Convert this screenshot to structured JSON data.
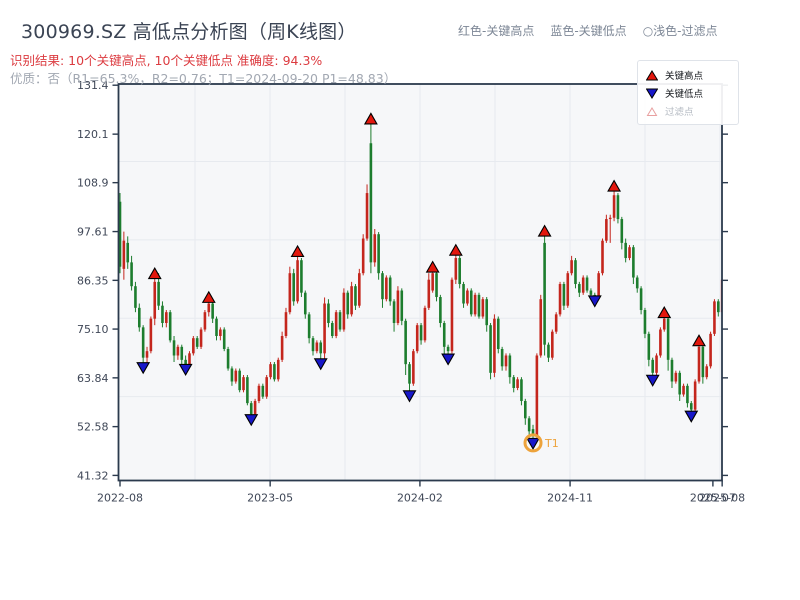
{
  "header": {
    "title": "300969.SZ 高低点分析图（周K线图）",
    "recognition_result": "识别结果: 10个关键高点, 10个关键低点  准确度: 94.3%",
    "quality_line": "优质：否（R1=65.3%，R2=0.76；T1=2024-09-20 P1=48.83）",
    "legend_top": {
      "high": "红色-关键高点",
      "low": "蓝色-关键低点",
      "filtered": "○浅色-过滤点"
    }
  },
  "legend_box": {
    "high": "关键高点",
    "low": "关键低点",
    "filtered": "过滤点"
  },
  "chart_data": {
    "type": "candlestick",
    "symbol": "300969.SZ",
    "timeframe": "weekly",
    "ylim": [
      41.32,
      131.4
    ],
    "y_ticks": [
      {
        "label": "131.4",
        "value": 131.4
      },
      {
        "label": "120.1",
        "value": 120.1
      },
      {
        "label": "108.9",
        "value": 108.9
      },
      {
        "label": "97.61",
        "value": 97.61
      },
      {
        "label": "86.35",
        "value": 86.35
      },
      {
        "label": "75.10",
        "value": 75.1
      },
      {
        "label": "63.84",
        "value": 63.84
      },
      {
        "label": "52.58",
        "value": 52.58
      },
      {
        "label": "41.32",
        "value": 41.32
      }
    ],
    "x_ticks": [
      {
        "label": "2022-08",
        "week": 0
      },
      {
        "label": "2023-05",
        "week": 38.9
      },
      {
        "label": "2024-02",
        "week": 77.7
      },
      {
        "label": "2024-11",
        "week": 116.6
      },
      {
        "label": "2025-07",
        "week": 153.6
      },
      {
        "label": "2025-08",
        "week": 156.0
      }
    ],
    "grid": {
      "vertical_weeks": [
        19.43,
        38.86,
        58.29,
        77.72,
        97.15,
        116.58,
        136.01,
        155.44
      ],
      "horizontal_values": [
        113.8,
        95.7,
        77.6,
        59.5
      ]
    },
    "colors": {
      "up": "#c4261d",
      "down": "#1d7d2e",
      "high_marker": "#e3170d",
      "low_marker": "#1717c9",
      "marker_edge": "#000000",
      "filtered_marker_edge": "#e8a0a0",
      "t1": "#eda33c",
      "frame": "#2b3a4d",
      "grid": "#e7eaef",
      "plot_bg": "#f6f7f9",
      "tick_label": "#3f4757"
    },
    "candles": [
      [
        104.5,
        106.5,
        88,
        89.5
      ],
      [
        89,
        97.6,
        86.5,
        95.5
      ],
      [
        95,
        96.5,
        89,
        90.5
      ],
      [
        90.5,
        92,
        84,
        85
      ],
      [
        85,
        86,
        79,
        80
      ],
      [
        80,
        81,
        74.5,
        75.5
      ],
      [
        75.5,
        76,
        66.3,
        68.5
      ],
      [
        68.5,
        71,
        67,
        70
      ],
      [
        70,
        78,
        69.5,
        77.5
      ],
      [
        77.5,
        87.8,
        76,
        86
      ],
      [
        86,
        88,
        79.5,
        80.5
      ],
      [
        80.5,
        81.5,
        75.5,
        76.5
      ],
      [
        76.5,
        79.5,
        75.5,
        79
      ],
      [
        79,
        79.5,
        72,
        72.5
      ],
      [
        72.5,
        73.5,
        67.5,
        69
      ],
      [
        69,
        71.5,
        68,
        71
      ],
      [
        71,
        71.5,
        66.5,
        68
      ],
      [
        68,
        69,
        65.9,
        67
      ],
      [
        67,
        70,
        66.5,
        69.5
      ],
      [
        69.5,
        73.5,
        69,
        73
      ],
      [
        73,
        73.5,
        70.5,
        71
      ],
      [
        71,
        75.5,
        70.5,
        75
      ],
      [
        75,
        79.5,
        74.5,
        79
      ],
      [
        79,
        82.3,
        78,
        81
      ],
      [
        81,
        81.5,
        76.5,
        77.5
      ],
      [
        77.5,
        78,
        72.5,
        73.5
      ],
      [
        73.5,
        75.5,
        72.5,
        75
      ],
      [
        75,
        75.5,
        70,
        70.5
      ],
      [
        70.5,
        71,
        65.5,
        66
      ],
      [
        66,
        66.5,
        62,
        63
      ],
      [
        63,
        66,
        62.5,
        65.5
      ],
      [
        65.5,
        66,
        60.5,
        61
      ],
      [
        61,
        64.5,
        60.5,
        64
      ],
      [
        64,
        64.5,
        57.5,
        58
      ],
      [
        58,
        58.5,
        54.3,
        55.5
      ],
      [
        55.5,
        59,
        55,
        58.5
      ],
      [
        58.5,
        62.5,
        58,
        62
      ],
      [
        62,
        62.5,
        59,
        59.5
      ],
      [
        59.5,
        64.5,
        59,
        64
      ],
      [
        64,
        67.5,
        63.5,
        67
      ],
      [
        67,
        67.5,
        63,
        63.5
      ],
      [
        63.5,
        68.5,
        63,
        68
      ],
      [
        68,
        74.5,
        67.5,
        73.5
      ],
      [
        73.5,
        80,
        73,
        79
      ],
      [
        79,
        89.5,
        78.5,
        88
      ],
      [
        88,
        89,
        80.5,
        81.5
      ],
      [
        81.5,
        92.9,
        81,
        91
      ],
      [
        91,
        91.5,
        82.5,
        83.5
      ],
      [
        83.5,
        84,
        77.5,
        78.5
      ],
      [
        78.5,
        79,
        71.8,
        73
      ],
      [
        73,
        73.5,
        69,
        70
      ],
      [
        70,
        72.5,
        69.5,
        72
      ],
      [
        72,
        72.5,
        67.2,
        69.5
      ],
      [
        69.5,
        82.4,
        68,
        81
      ],
      [
        81,
        82,
        75.5,
        76.5
      ],
      [
        76.5,
        77,
        73,
        73.5
      ],
      [
        73.5,
        79.5,
        73,
        79
      ],
      [
        79,
        79.5,
        74.5,
        75
      ],
      [
        75,
        84.5,
        74.5,
        83.5
      ],
      [
        83.5,
        84,
        77.5,
        78.5
      ],
      [
        78.5,
        86,
        78,
        85
      ],
      [
        85,
        85.5,
        79.5,
        80.5
      ],
      [
        80.5,
        89,
        80,
        88
      ],
      [
        88,
        97,
        87.5,
        96
      ],
      [
        96,
        108.5,
        95.5,
        106.5
      ],
      [
        118,
        123.5,
        88,
        90.5
      ],
      [
        90.5,
        98.2,
        89.5,
        97
      ],
      [
        97,
        97.5,
        86.5,
        88
      ],
      [
        88,
        88.5,
        80,
        82
      ],
      [
        82,
        87.5,
        81.5,
        87
      ],
      [
        87,
        87.5,
        80.5,
        81.5
      ],
      [
        81.5,
        82,
        74.5,
        76.5
      ],
      [
        76.5,
        85,
        76,
        84
      ],
      [
        84,
        84.5,
        76,
        77
      ],
      [
        77,
        77.5,
        64.5,
        67
      ],
      [
        67,
        67.5,
        59.8,
        62.5
      ],
      [
        62.5,
        70.5,
        62,
        70
      ],
      [
        70,
        76.5,
        69.5,
        76
      ],
      [
        76,
        76.5,
        71.5,
        72.5
      ],
      [
        72.5,
        80.5,
        72,
        80
      ],
      [
        80,
        88,
        79.5,
        86.5
      ],
      [
        84,
        89.3,
        83.5,
        88
      ],
      [
        88,
        88.5,
        81.5,
        82.5
      ],
      [
        82.5,
        83,
        75.5,
        76.5
      ],
      [
        76.5,
        77,
        69,
        71
      ],
      [
        71,
        71.5,
        68.3,
        70
      ],
      [
        70,
        87,
        69.5,
        86.5
      ],
      [
        86.5,
        93.2,
        85.5,
        91.5
      ],
      [
        91.5,
        92,
        84.5,
        85.5
      ],
      [
        85.5,
        86,
        80,
        81
      ],
      [
        81,
        84.5,
        80.5,
        84
      ],
      [
        84,
        84.5,
        78,
        78.5
      ],
      [
        78.5,
        83.5,
        78,
        83
      ],
      [
        83,
        83.5,
        77.5,
        78
      ],
      [
        78,
        82.5,
        77.5,
        82
      ],
      [
        82,
        82.5,
        74.5,
        76
      ],
      [
        76,
        76.5,
        63.5,
        65
      ],
      [
        65,
        78.5,
        64,
        77.5
      ],
      [
        77.5,
        78,
        69.5,
        70.5
      ],
      [
        70.5,
        71,
        65.5,
        66.5
      ],
      [
        66.5,
        69.5,
        65.5,
        69
      ],
      [
        69,
        69.5,
        62.5,
        64
      ],
      [
        64,
        64.5,
        60.5,
        61.5
      ],
      [
        61.5,
        64,
        61,
        63.5
      ],
      [
        63.5,
        64,
        57.5,
        58.5
      ],
      [
        58.5,
        59,
        53,
        54.5
      ],
      [
        54.5,
        55,
        50,
        51.5
      ],
      [
        52,
        53,
        48.83,
        50.5
      ],
      [
        50.5,
        69.5,
        50,
        69
      ],
      [
        69,
        83,
        68.5,
        82
      ],
      [
        95,
        97.61,
        69,
        71.5
      ],
      [
        71.5,
        72,
        67.5,
        68.5
      ],
      [
        68.5,
        75,
        68,
        74.5
      ],
      [
        74.5,
        79,
        74,
        78.5
      ],
      [
        78.5,
        86,
        78,
        85.5
      ],
      [
        85.5,
        86,
        79.5,
        80.5
      ],
      [
        80.5,
        88.5,
        80,
        88
      ],
      [
        88,
        92,
        87.5,
        91
      ],
      [
        91,
        91.5,
        84.5,
        85.5
      ],
      [
        85.5,
        86,
        82.5,
        83.5
      ],
      [
        83.5,
        87.5,
        83,
        87
      ],
      [
        87,
        87.5,
        83.5,
        84
      ],
      [
        84,
        84.5,
        82,
        83
      ],
      [
        83,
        83.5,
        81.7,
        82.5
      ],
      [
        82.5,
        88.5,
        82,
        88
      ],
      [
        88,
        96,
        87.5,
        95.5
      ],
      [
        95.5,
        101.5,
        95,
        100.5
      ],
      [
        100.5,
        101.5,
        95,
        100.8
      ],
      [
        100.8,
        108,
        100,
        106
      ],
      [
        106,
        106.5,
        99.5,
        100.5
      ],
      [
        100.5,
        101,
        93.5,
        95
      ],
      [
        95,
        96,
        90.5,
        91.5
      ],
      [
        91.5,
        94.5,
        91,
        94
      ],
      [
        94,
        94.5,
        85.5,
        87
      ],
      [
        87,
        87.5,
        83.5,
        84.5
      ],
      [
        84.5,
        85,
        78.5,
        79.5
      ],
      [
        79.5,
        80,
        73,
        74
      ],
      [
        74,
        74.5,
        66.5,
        68
      ],
      [
        68,
        68.5,
        63.4,
        65
      ],
      [
        65,
        69.5,
        64.5,
        69
      ],
      [
        69,
        75.5,
        68.5,
        75
      ],
      [
        75,
        78.8,
        74.5,
        77.5
      ],
      [
        77.5,
        78,
        65.5,
        68
      ],
      [
        68,
        68.5,
        61.5,
        63
      ],
      [
        63,
        65.5,
        62.5,
        65
      ],
      [
        65,
        65.5,
        58.5,
        60
      ],
      [
        60,
        62.5,
        59.5,
        62
      ],
      [
        62,
        62.5,
        57,
        58
      ],
      [
        58,
        58.5,
        55.1,
        56.5
      ],
      [
        56.5,
        63.5,
        56,
        63
      ],
      [
        63,
        72.3,
        62.5,
        71
      ],
      [
        71,
        71.5,
        62.5,
        64
      ],
      [
        64,
        67,
        63.5,
        66.5
      ],
      [
        66.5,
        74.5,
        66,
        74
      ],
      [
        74,
        82,
        73.5,
        81.5
      ],
      [
        81.5,
        82,
        78,
        79
      ],
      [
        79,
        87.2,
        78.5,
        86.5
      ]
    ],
    "key_highs": [
      {
        "week": 9,
        "value": 87.8
      },
      {
        "week": 23,
        "value": 82.3
      },
      {
        "week": 46,
        "value": 92.9
      },
      {
        "week": 65,
        "value": 123.5
      },
      {
        "week": 81,
        "value": 89.3
      },
      {
        "week": 87,
        "value": 93.2
      },
      {
        "week": 110,
        "value": 97.61
      },
      {
        "week": 128,
        "value": 108
      },
      {
        "week": 141,
        "value": 78.8
      },
      {
        "week": 150,
        "value": 72.3
      }
    ],
    "key_lows": [
      {
        "week": 6,
        "value": 66.3
      },
      {
        "week": 17,
        "value": 65.9
      },
      {
        "week": 34,
        "value": 54.3
      },
      {
        "week": 52,
        "value": 67.2
      },
      {
        "week": 75,
        "value": 59.8
      },
      {
        "week": 85,
        "value": 68.3
      },
      {
        "week": 107,
        "value": 48.83
      },
      {
        "week": 123,
        "value": 81.7
      },
      {
        "week": 138,
        "value": 63.4
      },
      {
        "week": 148,
        "value": 55.1
      }
    ],
    "t1_annotation": {
      "week": 107,
      "value": 48.83,
      "label": "T1"
    }
  }
}
